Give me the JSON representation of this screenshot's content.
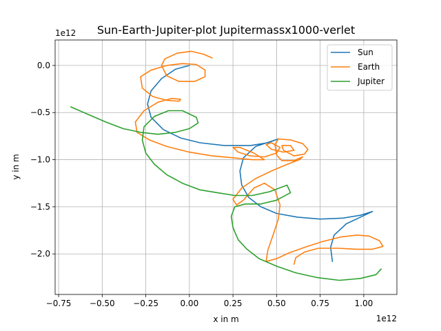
{
  "chart_data": {
    "type": "line",
    "title": "Sun-Earth-Jupiter-plot Jupitermassx1000-verlet",
    "xlabel": "x in m",
    "ylabel": "y in m",
    "x_offset_text": "1e12",
    "y_offset_text": "1e12",
    "xlim": [
      -0.77,
      1.19
    ],
    "ylim": [
      -2.43,
      0.27
    ],
    "grid": true,
    "legend_position": "top-right",
    "xticks": [
      {
        "value": -0.75,
        "label": "−0.75"
      },
      {
        "value": -0.5,
        "label": "−0.50"
      },
      {
        "value": -0.25,
        "label": "−0.25"
      },
      {
        "value": 0.0,
        "label": "0.00"
      },
      {
        "value": 0.25,
        "label": "0.25"
      },
      {
        "value": 0.5,
        "label": "0.50"
      },
      {
        "value": 0.75,
        "label": "0.75"
      },
      {
        "value": 1.0,
        "label": "1.00"
      }
    ],
    "yticks": [
      {
        "value": 0.0,
        "label": "0.0"
      },
      {
        "value": -0.5,
        "label": "−0.5"
      },
      {
        "value": -1.0,
        "label": "−1.0"
      },
      {
        "value": -1.5,
        "label": "−1.5"
      },
      {
        "value": -2.0,
        "label": "−2.0"
      }
    ],
    "series": [
      {
        "name": "Sun",
        "color": "#1f77b4",
        "points": [
          [
            0.0,
            0.0
          ],
          [
            -0.08,
            -0.04
          ],
          [
            -0.16,
            -0.14
          ],
          [
            -0.22,
            -0.27
          ],
          [
            -0.24,
            -0.41
          ],
          [
            -0.22,
            -0.55
          ],
          [
            -0.15,
            -0.68
          ],
          [
            -0.05,
            -0.77
          ],
          [
            0.06,
            -0.82
          ],
          [
            0.2,
            -0.85
          ],
          [
            0.35,
            -0.85
          ],
          [
            0.45,
            -0.82
          ],
          [
            0.51,
            -0.78
          ],
          [
            0.38,
            -0.86
          ],
          [
            0.31,
            -0.98
          ],
          [
            0.29,
            -1.12
          ],
          [
            0.3,
            -1.27
          ],
          [
            0.34,
            -1.4
          ],
          [
            0.41,
            -1.5
          ],
          [
            0.5,
            -1.57
          ],
          [
            0.62,
            -1.61
          ],
          [
            0.75,
            -1.63
          ],
          [
            0.88,
            -1.62
          ],
          [
            0.98,
            -1.59
          ],
          [
            1.05,
            -1.55
          ],
          [
            0.9,
            -1.68
          ],
          [
            0.83,
            -1.8
          ],
          [
            0.81,
            -1.93
          ],
          [
            0.82,
            -2.08
          ]
        ]
      },
      {
        "name": "Earth",
        "color": "#ff7f0e",
        "points": [
          [
            0.13,
            0.08
          ],
          [
            0.08,
            0.12
          ],
          [
            0.01,
            0.15
          ],
          [
            -0.07,
            0.13
          ],
          [
            -0.14,
            0.07
          ],
          [
            -0.16,
            0.0
          ],
          [
            -0.13,
            -0.11
          ],
          [
            -0.06,
            -0.17
          ],
          [
            0.03,
            -0.17
          ],
          [
            0.09,
            -0.12
          ],
          [
            0.09,
            -0.05
          ],
          [
            0.04,
            0.01
          ],
          [
            -0.04,
            0.02
          ],
          [
            -0.13,
            0.0
          ],
          [
            -0.22,
            -0.05
          ],
          [
            -0.28,
            -0.12
          ],
          [
            -0.27,
            -0.24
          ],
          [
            -0.21,
            -0.33
          ],
          [
            -0.13,
            -0.37
          ],
          [
            -0.06,
            -0.38
          ],
          [
            -0.05,
            -0.36
          ],
          [
            -0.1,
            -0.35
          ],
          [
            -0.18,
            -0.39
          ],
          [
            -0.26,
            -0.48
          ],
          [
            -0.31,
            -0.6
          ],
          [
            -0.3,
            -0.71
          ],
          [
            -0.23,
            -0.79
          ],
          [
            -0.13,
            -0.86
          ],
          [
            0.0,
            -0.92
          ],
          [
            0.13,
            -0.96
          ],
          [
            0.25,
            -0.98
          ],
          [
            0.36,
            -1.0
          ],
          [
            0.43,
            -1.0
          ],
          [
            0.37,
            -0.93
          ],
          [
            0.29,
            -0.87
          ],
          [
            0.25,
            -0.87
          ],
          [
            0.28,
            -0.92
          ],
          [
            0.35,
            -0.96
          ],
          [
            0.43,
            -0.97
          ],
          [
            0.5,
            -0.93
          ],
          [
            0.52,
            -0.87
          ],
          [
            0.47,
            -0.82
          ],
          [
            0.44,
            -0.84
          ],
          [
            0.47,
            -0.89
          ],
          [
            0.54,
            -0.92
          ],
          [
            0.6,
            -0.9
          ],
          [
            0.58,
            -0.85
          ],
          [
            0.53,
            -0.85
          ],
          [
            0.54,
            -0.9
          ],
          [
            0.6,
            -0.96
          ],
          [
            0.66,
            -0.94
          ],
          [
            0.68,
            -0.89
          ],
          [
            0.65,
            -0.83
          ],
          [
            0.58,
            -0.79
          ],
          [
            0.51,
            -0.78
          ],
          [
            0.49,
            -0.84
          ],
          [
            0.5,
            -0.95
          ],
          [
            0.53,
            -1.01
          ],
          [
            0.6,
            -1.01
          ],
          [
            0.65,
            -0.97
          ],
          [
            0.63,
            -1.0
          ],
          [
            0.56,
            -1.05
          ],
          [
            0.47,
            -1.12
          ],
          [
            0.38,
            -1.2
          ],
          [
            0.3,
            -1.3
          ],
          [
            0.25,
            -1.42
          ],
          [
            0.27,
            -1.48
          ],
          [
            0.31,
            -1.43
          ],
          [
            0.37,
            -1.3
          ],
          [
            0.43,
            -1.25
          ],
          [
            0.49,
            -1.32
          ],
          [
            0.52,
            -1.48
          ],
          [
            0.51,
            -1.63
          ],
          [
            0.48,
            -1.8
          ],
          [
            0.45,
            -1.96
          ],
          [
            0.44,
            -2.08
          ],
          [
            0.5,
            -2.05
          ],
          [
            0.57,
            -1.99
          ],
          [
            0.66,
            -1.93
          ],
          [
            0.76,
            -1.87
          ],
          [
            0.87,
            -1.82
          ],
          [
            0.96,
            -1.8
          ],
          [
            1.03,
            -1.81
          ],
          [
            1.09,
            -1.86
          ],
          [
            1.11,
            -1.92
          ],
          [
            1.05,
            -1.95
          ],
          [
            0.96,
            -1.95
          ],
          [
            0.85,
            -1.94
          ],
          [
            0.74,
            -1.94
          ],
          [
            0.66,
            -1.98
          ],
          [
            0.61,
            -2.04
          ],
          [
            0.6,
            -2.11
          ]
        ]
      },
      {
        "name": "Jupiter",
        "color": "#2ca02c",
        "points": [
          [
            -0.68,
            -0.44
          ],
          [
            -0.58,
            -0.52
          ],
          [
            -0.48,
            -0.6
          ],
          [
            -0.38,
            -0.67
          ],
          [
            -0.28,
            -0.71
          ],
          [
            -0.18,
            -0.73
          ],
          [
            -0.08,
            -0.71
          ],
          [
            0.0,
            -0.67
          ],
          [
            0.05,
            -0.61
          ],
          [
            0.04,
            -0.55
          ],
          [
            -0.04,
            -0.48
          ],
          [
            -0.12,
            -0.48
          ],
          [
            -0.2,
            -0.54
          ],
          [
            -0.26,
            -0.65
          ],
          [
            -0.27,
            -0.79
          ],
          [
            -0.25,
            -0.93
          ],
          [
            -0.2,
            -1.05
          ],
          [
            -0.13,
            -1.16
          ],
          [
            -0.04,
            -1.25
          ],
          [
            0.06,
            -1.32
          ],
          [
            0.16,
            -1.35
          ],
          [
            0.26,
            -1.38
          ],
          [
            0.36,
            -1.38
          ],
          [
            0.46,
            -1.34
          ],
          [
            0.56,
            -1.27
          ],
          [
            0.58,
            -1.35
          ],
          [
            0.5,
            -1.43
          ],
          [
            0.41,
            -1.47
          ],
          [
            0.32,
            -1.47
          ],
          [
            0.26,
            -1.5
          ],
          [
            0.24,
            -1.6
          ],
          [
            0.25,
            -1.72
          ],
          [
            0.28,
            -1.85
          ],
          [
            0.33,
            -1.95
          ],
          [
            0.4,
            -2.05
          ],
          [
            0.5,
            -2.13
          ],
          [
            0.61,
            -2.2
          ],
          [
            0.73,
            -2.25
          ],
          [
            0.86,
            -2.28
          ],
          [
            0.98,
            -2.26
          ],
          [
            1.07,
            -2.22
          ],
          [
            1.1,
            -2.16
          ]
        ]
      }
    ]
  }
}
